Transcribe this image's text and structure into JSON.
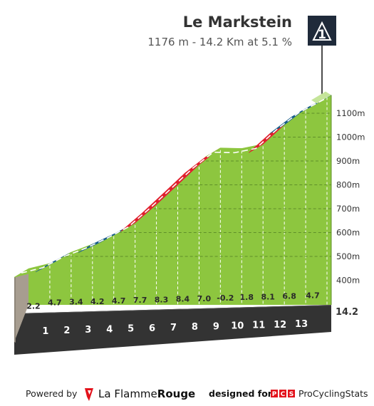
{
  "header": {
    "climb_name": "Le Markstein",
    "summary": "1176 m - 14.2 Km at 5.1 %",
    "category": "1"
  },
  "footer": {
    "powered_by": "Powered by",
    "brand_la": "La ",
    "brand_flamme": "Flamme",
    "brand_rouge": "Rouge",
    "designed_for": "designed for",
    "pcs_badge": [
      "P",
      "C",
      "S"
    ],
    "pcs_name": "ProCyclingStats"
  },
  "colors": {
    "easy": "#8dc63f",
    "moderate": "#1a5e8a",
    "steep": "#e0202e",
    "base": "#333333",
    "left_side": "#a79d90",
    "top_face": "#c5e59a",
    "text": "#333333",
    "logo_red": "#e3121b"
  },
  "chart_data": {
    "type": "area",
    "distance_unit": "km",
    "total_distance": 14.2,
    "total_label": "14.2",
    "elevation_range": [
      300,
      1176
    ],
    "y_ticks": [
      400,
      500,
      600,
      700,
      800,
      900,
      1000,
      1100
    ],
    "y_tick_labels": [
      "400m",
      "500m",
      "600m",
      "700m",
      "800m",
      "900m",
      "1000m",
      "1100m"
    ],
    "km_labels": [
      "1",
      "2",
      "3",
      "4",
      "5",
      "6",
      "7",
      "8",
      "9",
      "10",
      "11",
      "12",
      "13"
    ],
    "gradient_labels": [
      "2.2",
      "4.7",
      "3.4",
      "4.2",
      "4.7",
      "7.7",
      "8.3",
      "8.4",
      "7.0",
      "-0.2",
      "1.8",
      "8.1",
      "6.8",
      "4.7"
    ],
    "kilometers": [
      {
        "from": 0,
        "to": 1,
        "gradient": 2.2
      },
      {
        "from": 1,
        "to": 2,
        "gradient": 4.7
      },
      {
        "from": 2,
        "to": 3,
        "gradient": 3.4
      },
      {
        "from": 3,
        "to": 4,
        "gradient": 4.2
      },
      {
        "from": 4,
        "to": 5,
        "gradient": 4.7
      },
      {
        "from": 5,
        "to": 6,
        "gradient": 7.7
      },
      {
        "from": 6,
        "to": 7,
        "gradient": 8.3
      },
      {
        "from": 7,
        "to": 8,
        "gradient": 8.4
      },
      {
        "from": 8,
        "to": 9,
        "gradient": 7.0
      },
      {
        "from": 9,
        "to": 10,
        "gradient": -0.2
      },
      {
        "from": 10,
        "to": 11,
        "gradient": 1.8
      },
      {
        "from": 11,
        "to": 12,
        "gradient": 8.1
      },
      {
        "from": 12,
        "to": 13,
        "gradient": 6.8
      },
      {
        "from": 13,
        "to": 14.2,
        "gradient": 4.7
      }
    ],
    "summit_elevation": 1176
  }
}
